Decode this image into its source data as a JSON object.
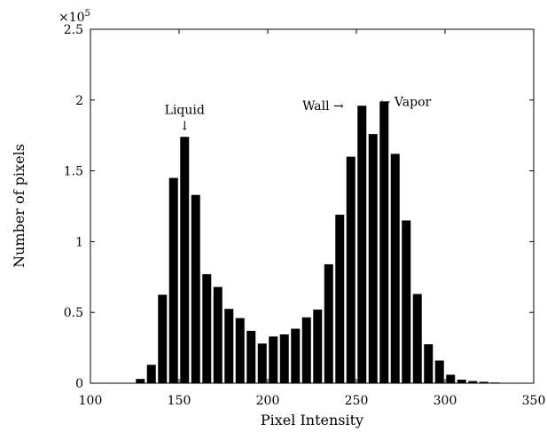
{
  "chart_data": {
    "type": "bar",
    "xlabel": "Pixel Intensity",
    "ylabel": "Number of pixels",
    "xlim": [
      100,
      350
    ],
    "ylim": [
      0,
      250000
    ],
    "xticks": [
      "100",
      "150",
      "200",
      "250",
      "300",
      "350"
    ],
    "yticks": [
      "0",
      "0.5",
      "1",
      "1.5",
      "2",
      "2.5"
    ],
    "y_multiplier": {
      "base": "×10",
      "exponent": "5"
    },
    "bin_width": 6.25,
    "x": [
      128.125,
      134.375,
      140.625,
      146.875,
      153.125,
      159.375,
      165.625,
      171.875,
      178.125,
      184.375,
      190.625,
      196.875,
      203.125,
      209.375,
      215.625,
      221.875,
      228.125,
      234.375,
      240.625,
      246.875,
      253.125,
      259.375,
      265.625,
      271.875,
      278.125,
      284.375,
      290.625,
      296.875,
      303.125,
      309.375,
      315.625,
      321.875,
      328.125
    ],
    "values": [
      3000,
      13000,
      62500,
      145000,
      174000,
      133000,
      77000,
      68000,
      52500,
      46000,
      37000,
      28000,
      33000,
      34500,
      38500,
      46500,
      52000,
      84000,
      119000,
      160000,
      196000,
      176000,
      199000,
      162000,
      115000,
      63000,
      27500,
      16000,
      6000,
      2500,
      1500,
      1000,
      500
    ],
    "grid": false,
    "annotations": [
      {
        "text": "Liquid",
        "arrow": "↓",
        "x": 153.125,
        "y": 174000
      },
      {
        "text": "Wall",
        "arrow": "→",
        "x": 246.875,
        "y": 196000
      },
      {
        "text": "Vapor",
        "arrow": "←",
        "x": 259.375,
        "y": 199000
      }
    ]
  }
}
